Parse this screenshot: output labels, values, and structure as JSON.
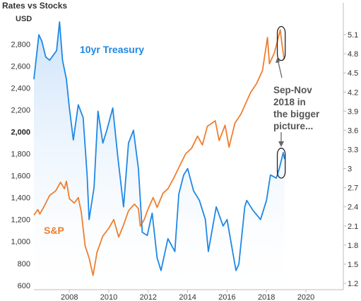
{
  "chart_data": {
    "type": "line",
    "title": "Rates vs Stocks",
    "left_axis_unit": "USD",
    "x_ticks": [
      "2008",
      "2010",
      "2012",
      "2014",
      "2016",
      "2018",
      "2020"
    ],
    "x_range": [
      2006.2,
      2021.9
    ],
    "left_axis": {
      "range": [
        560,
        3060
      ],
      "ticks": [
        "600",
        "800",
        "1,000",
        "1,200",
        "1,400",
        "1,600",
        "1,800",
        "2,000",
        "2,200",
        "2,400",
        "2,600",
        "2,800"
      ],
      "tick_values": [
        600,
        800,
        1000,
        1200,
        1400,
        1600,
        1800,
        2000,
        2200,
        2400,
        2600,
        2800
      ]
    },
    "right_axis": {
      "range": [
        1.1,
        5.4
      ],
      "ticks": [
        "1.2",
        "1.5",
        "1.8",
        "2.1",
        "2.4",
        "2.7",
        "3",
        "3.3",
        "3.6",
        "3.9",
        "4.2",
        "4.5",
        "4.8",
        "5.1"
      ],
      "tick_values": [
        1.2,
        1.5,
        1.8,
        2.1,
        2.4,
        2.7,
        3.0,
        3.3,
        3.6,
        3.9,
        4.2,
        4.5,
        4.8,
        5.1
      ]
    },
    "series": [
      {
        "name": "10yr Treasury",
        "axis": "right",
        "color": "#1e88e5",
        "fill": "#d4e8fb",
        "points": [
          [
            2006.2,
            4.4
          ],
          [
            2006.45,
            5.1
          ],
          [
            2006.6,
            5.0
          ],
          [
            2006.8,
            4.75
          ],
          [
            2007.0,
            4.7
          ],
          [
            2007.35,
            4.85
          ],
          [
            2007.5,
            5.3
          ],
          [
            2007.65,
            4.7
          ],
          [
            2007.85,
            4.4
          ],
          [
            2008.0,
            3.95
          ],
          [
            2008.2,
            3.45
          ],
          [
            2008.45,
            4.0
          ],
          [
            2008.7,
            3.8
          ],
          [
            2008.9,
            2.9
          ],
          [
            2009.0,
            2.2
          ],
          [
            2009.25,
            2.7
          ],
          [
            2009.45,
            3.9
          ],
          [
            2009.7,
            3.4
          ],
          [
            2009.9,
            3.6
          ],
          [
            2010.2,
            3.95
          ],
          [
            2010.45,
            3.2
          ],
          [
            2010.75,
            2.4
          ],
          [
            2011.0,
            3.4
          ],
          [
            2011.25,
            3.6
          ],
          [
            2011.5,
            3.0
          ],
          [
            2011.7,
            2.0
          ],
          [
            2011.95,
            1.95
          ],
          [
            2012.2,
            2.3
          ],
          [
            2012.45,
            1.6
          ],
          [
            2012.65,
            1.4
          ],
          [
            2013.0,
            1.9
          ],
          [
            2013.35,
            1.7
          ],
          [
            2013.55,
            2.6
          ],
          [
            2013.8,
            2.9
          ],
          [
            2014.0,
            3.0
          ],
          [
            2014.3,
            2.65
          ],
          [
            2014.6,
            2.5
          ],
          [
            2014.9,
            2.2
          ],
          [
            2015.05,
            1.7
          ],
          [
            2015.45,
            2.4
          ],
          [
            2015.8,
            2.1
          ],
          [
            2016.0,
            2.2
          ],
          [
            2016.45,
            1.4
          ],
          [
            2016.6,
            1.5
          ],
          [
            2016.9,
            2.4
          ],
          [
            2017.0,
            2.5
          ],
          [
            2017.3,
            2.35
          ],
          [
            2017.7,
            2.2
          ],
          [
            2018.0,
            2.5
          ],
          [
            2018.2,
            2.9
          ],
          [
            2018.5,
            2.85
          ],
          [
            2018.65,
            3.0
          ],
          [
            2018.85,
            3.25
          ],
          [
            2018.92,
            3.15
          ]
        ]
      },
      {
        "name": "S&P",
        "axis": "left",
        "color": "#f07e2f",
        "points": [
          [
            2006.2,
            1240
          ],
          [
            2006.4,
            1290
          ],
          [
            2006.5,
            1250
          ],
          [
            2006.75,
            1330
          ],
          [
            2007.0,
            1420
          ],
          [
            2007.3,
            1460
          ],
          [
            2007.55,
            1540
          ],
          [
            2007.75,
            1480
          ],
          [
            2007.85,
            1550
          ],
          [
            2008.0,
            1390
          ],
          [
            2008.25,
            1350
          ],
          [
            2008.45,
            1400
          ],
          [
            2008.6,
            1270
          ],
          [
            2008.8,
            960
          ],
          [
            2009.0,
            850
          ],
          [
            2009.2,
            690
          ],
          [
            2009.4,
            900
          ],
          [
            2009.7,
            1050
          ],
          [
            2010.0,
            1120
          ],
          [
            2010.25,
            1200
          ],
          [
            2010.5,
            1040
          ],
          [
            2010.75,
            1150
          ],
          [
            2011.0,
            1280
          ],
          [
            2011.3,
            1340
          ],
          [
            2011.5,
            1300
          ],
          [
            2011.6,
            1140
          ],
          [
            2011.8,
            1200
          ],
          [
            2012.0,
            1300
          ],
          [
            2012.25,
            1400
          ],
          [
            2012.45,
            1310
          ],
          [
            2012.75,
            1440
          ],
          [
            2013.0,
            1480
          ],
          [
            2013.3,
            1580
          ],
          [
            2013.6,
            1690
          ],
          [
            2013.9,
            1800
          ],
          [
            2014.2,
            1850
          ],
          [
            2014.5,
            1960
          ],
          [
            2014.75,
            1880
          ],
          [
            2015.0,
            2050
          ],
          [
            2015.4,
            2100
          ],
          [
            2015.6,
            1920
          ],
          [
            2015.9,
            2060
          ],
          [
            2016.1,
            1860
          ],
          [
            2016.4,
            2080
          ],
          [
            2016.7,
            2160
          ],
          [
            2016.9,
            2240
          ],
          [
            2017.2,
            2360
          ],
          [
            2017.5,
            2440
          ],
          [
            2017.8,
            2560
          ],
          [
            2018.05,
            2860
          ],
          [
            2018.15,
            2620
          ],
          [
            2018.4,
            2720
          ],
          [
            2018.7,
            2930
          ],
          [
            2018.8,
            2780
          ],
          [
            2018.9,
            2660
          ]
        ]
      }
    ],
    "annotations": {
      "series_labels": [
        "10yr Treasury",
        "S&P"
      ],
      "callout": [
        "Sep-Nov",
        "2018 in",
        "the bigger",
        "picture..."
      ]
    },
    "highlight_boxes": [
      {
        "series": "S&P",
        "x_range": [
          2018.55,
          2018.95
        ],
        "y_range": [
          2650,
          2960
        ]
      },
      {
        "series": "10yr Treasury",
        "x_range": [
          2018.55,
          2018.95
        ],
        "y_range": [
          2.85,
          3.32
        ]
      }
    ],
    "grid": false,
    "legend": "none"
  }
}
